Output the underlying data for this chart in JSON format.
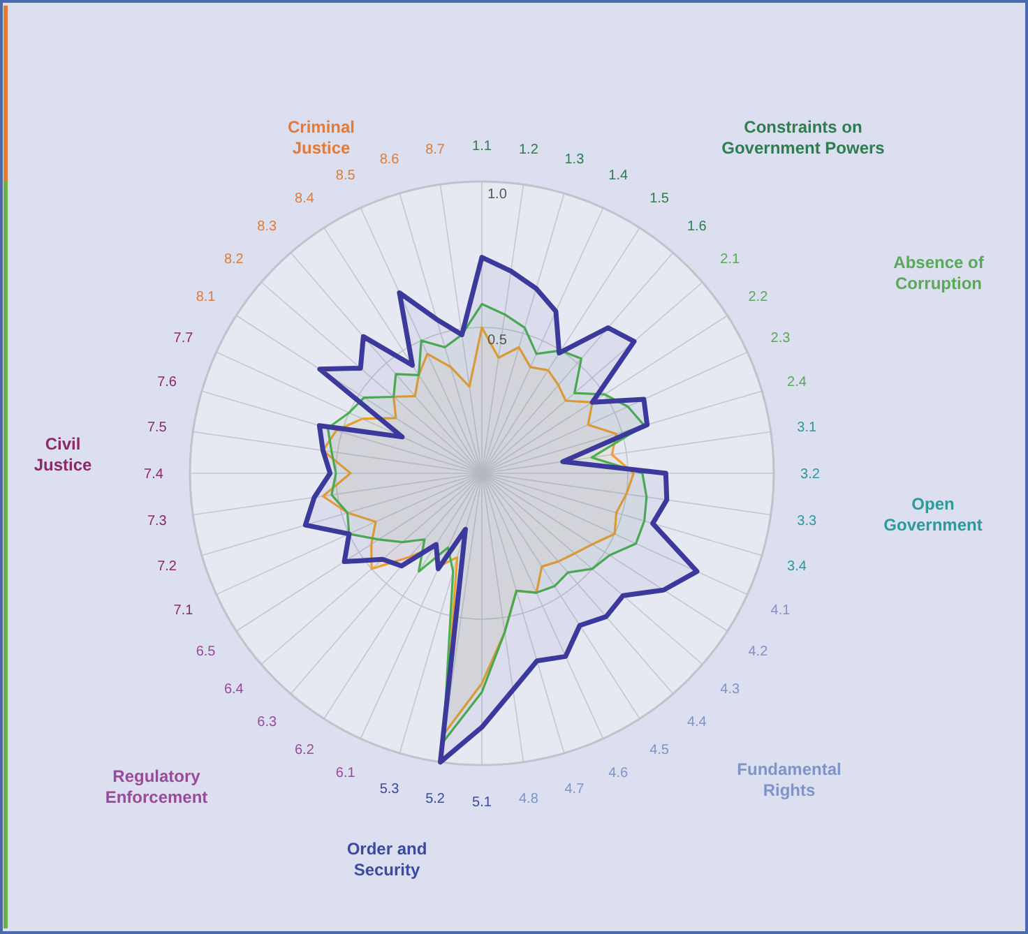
{
  "chart_data": {
    "type": "radar",
    "categories": [
      "1.1",
      "1.2",
      "1.3",
      "1.4",
      "1.5",
      "1.6",
      "2.1",
      "2.2",
      "2.3",
      "2.4",
      "3.1",
      "3.2",
      "3.3",
      "3.4",
      "4.1",
      "4.2",
      "4.3",
      "4.4",
      "4.5",
      "4.6",
      "4.7",
      "4.8",
      "5.1",
      "5.2",
      "5.3",
      "6.1",
      "6.2",
      "6.3",
      "6.4",
      "6.5",
      "7.1",
      "7.2",
      "7.3",
      "7.4",
      "7.5",
      "7.6",
      "7.7",
      "8.1",
      "8.2",
      "8.3",
      "8.4",
      "8.5",
      "8.6",
      "8.7"
    ],
    "series": [
      {
        "color": "#f0a030",
        "values": [
          0.5,
          0.4,
          0.45,
          0.4,
          0.42,
          0.4,
          0.38,
          0.45,
          0.4,
          0.48,
          0.45,
          0.52,
          0.5,
          0.48,
          0.5,
          0.45,
          0.42,
          0.4,
          0.38,
          0.45,
          0.42,
          0.55,
          0.72,
          0.9,
          0.3,
          0.35,
          0.3,
          0.38,
          0.5,
          0.45,
          0.4,
          0.48,
          0.55,
          0.45,
          0.55,
          0.52,
          0.45,
          0.35,
          0.4,
          0.35,
          0.4,
          0.45,
          0.38,
          0.3
        ]
      },
      {
        "color": "#4caf50",
        "values": [
          0.58,
          0.55,
          0.52,
          0.45,
          0.5,
          0.52,
          0.42,
          0.5,
          0.55,
          0.58,
          0.38,
          0.55,
          0.57,
          0.58,
          0.58,
          0.52,
          0.5,
          0.45,
          0.46,
          0.45,
          0.42,
          0.55,
          0.75,
          0.93,
          0.35,
          0.28,
          0.4,
          0.3,
          0.36,
          0.42,
          0.5,
          0.48,
          0.52,
          0.5,
          0.52,
          0.55,
          0.5,
          0.48,
          0.4,
          0.45,
          0.4,
          0.5,
          0.45,
          0.48
        ]
      },
      {
        "color": "#3b3a9c",
        "values": [
          0.74,
          0.7,
          0.66,
          0.61,
          0.49,
          0.66,
          0.69,
          0.45,
          0.61,
          0.59,
          0.28,
          0.63,
          0.64,
          0.61,
          0.81,
          0.74,
          0.64,
          0.65,
          0.62,
          0.69,
          0.67,
          0.75,
          0.87,
          1.0,
          0.2,
          0.36,
          0.29,
          0.42,
          0.45,
          0.56,
          0.5,
          0.63,
          0.58,
          0.52,
          0.55,
          0.58,
          0.3,
          0.66,
          0.55,
          0.62,
          0.44,
          0.68,
          0.55,
          0.48
        ]
      }
    ],
    "ylim": [
      0,
      1
    ],
    "yticks": [
      0.5,
      {
        "value": 1,
        "label": "1.0"
      }
    ],
    "annotations": [
      "Constraints on Government Powers",
      "Absence of Corruption",
      "Open Government",
      "Fundamental Rights",
      "Order and Security",
      "Regulatory Enforcement",
      "Civil Justice",
      "Criminal Justice"
    ]
  }
}
